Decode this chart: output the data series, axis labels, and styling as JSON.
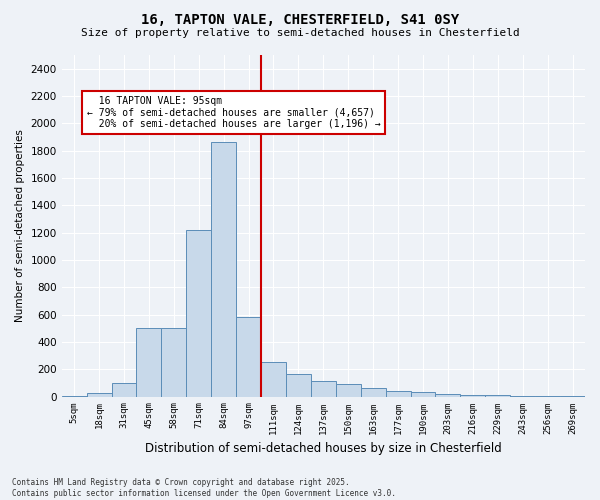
{
  "title": "16, TAPTON VALE, CHESTERFIELD, S41 0SY",
  "subtitle": "Size of property relative to semi-detached houses in Chesterfield",
  "xlabel": "Distribution of semi-detached houses by size in Chesterfield",
  "ylabel": "Number of semi-detached properties",
  "footnote": "Contains HM Land Registry data © Crown copyright and database right 2025.\nContains public sector information licensed under the Open Government Licence v3.0.",
  "property_label": "16 TAPTON VALE: 95sqm",
  "pct_smaller": 79,
  "n_smaller": "4,657",
  "pct_larger": 20,
  "n_larger": "1,196",
  "bar_color": "#c8d9ea",
  "bar_edge_color": "#5b8db8",
  "vline_color": "#cc0000",
  "annotation_box_color": "#cc0000",
  "background_color": "#eef2f7",
  "grid_color": "#ffffff",
  "categories": [
    "5sqm",
    "18sqm",
    "31sqm",
    "45sqm",
    "58sqm",
    "71sqm",
    "84sqm",
    "97sqm",
    "111sqm",
    "124sqm",
    "137sqm",
    "150sqm",
    "163sqm",
    "177sqm",
    "190sqm",
    "203sqm",
    "216sqm",
    "229sqm",
    "243sqm",
    "256sqm",
    "269sqm"
  ],
  "values": [
    5,
    25,
    100,
    500,
    500,
    1220,
    1860,
    580,
    255,
    165,
    115,
    95,
    65,
    40,
    30,
    20,
    12,
    10,
    6,
    4,
    4
  ],
  "vline_index": 7.5,
  "ylim": [
    0,
    2500
  ],
  "yticks": [
    0,
    200,
    400,
    600,
    800,
    1000,
    1200,
    1400,
    1600,
    1800,
    2000,
    2200,
    2400
  ]
}
